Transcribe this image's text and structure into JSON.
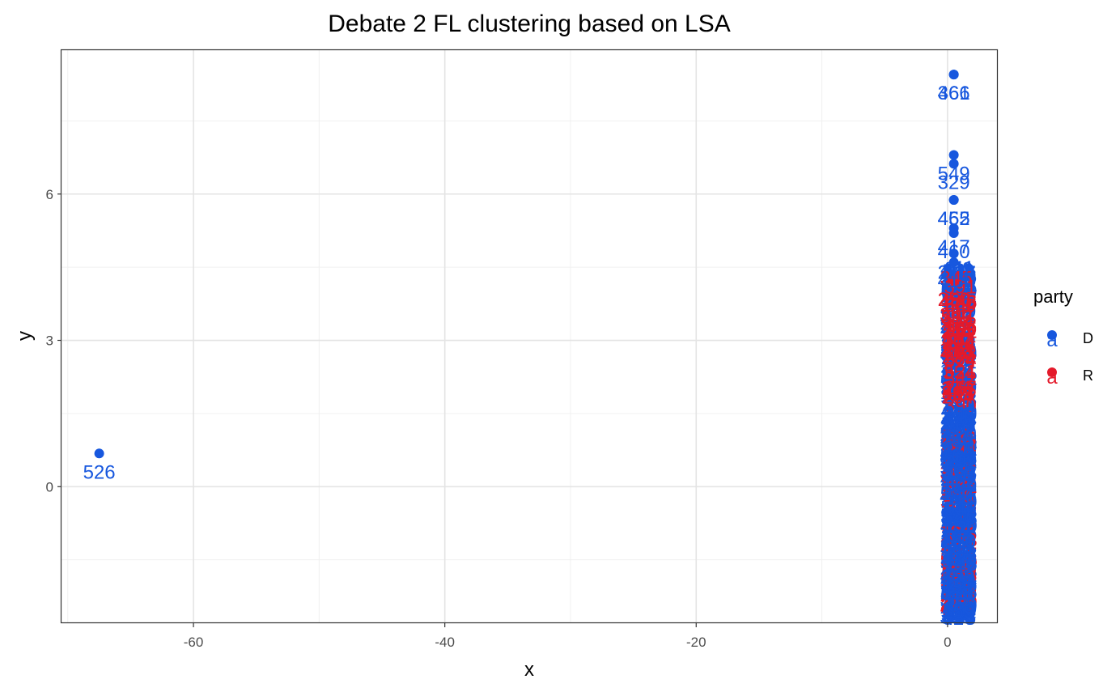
{
  "chart_data": {
    "type": "scatter",
    "title": "Debate 2 FL clustering based on LSA",
    "xlabel": "x",
    "ylabel": "y",
    "xlim": [
      -70.5,
      4.0
    ],
    "ylim": [
      -2.8,
      8.95
    ],
    "x_ticks": [
      -60,
      -40,
      -20,
      0
    ],
    "x_tick_labels": [
      "-60",
      "-40",
      "-20",
      "0"
    ],
    "y_ticks": [
      0,
      3,
      6
    ],
    "y_tick_labels": [
      "0",
      "3",
      "6"
    ],
    "grid": true,
    "legend": {
      "title": "party",
      "position": "right",
      "entries": [
        {
          "label": "D",
          "glyph": "a",
          "color": "#1757de"
        },
        {
          "label": "R",
          "glyph": "a",
          "color": "#e41a2b"
        }
      ]
    },
    "series": [
      {
        "name": "D",
        "color": "#1757de",
        "points": [
          {
            "x": -67.5,
            "y": 0.68,
            "label": "526"
          },
          {
            "x": 0.5,
            "y": 8.45,
            "label": "461"
          },
          {
            "x": 0.5,
            "y": 8.45,
            "label": "366"
          },
          {
            "x": 0.5,
            "y": 6.8,
            "label": "549"
          },
          {
            "x": 0.5,
            "y": 6.62,
            "label": "329"
          },
          {
            "x": 0.5,
            "y": 5.88,
            "label": "465"
          },
          {
            "x": 0.5,
            "y": 5.88,
            "label": "452"
          },
          {
            "x": 0.5,
            "y": 5.3,
            "label": "417"
          },
          {
            "x": 0.5,
            "y": 5.2,
            "label": "460"
          },
          {
            "x": 0.5,
            "y": 4.78,
            "label": "212"
          },
          {
            "x": 0.5,
            "y": 4.6,
            "label": "414"
          }
        ]
      },
      {
        "name": "R",
        "color": "#e41a2b",
        "points": [
          {
            "x": 0.5,
            "y": 4.22,
            "label": "250"
          }
        ]
      }
    ]
  }
}
